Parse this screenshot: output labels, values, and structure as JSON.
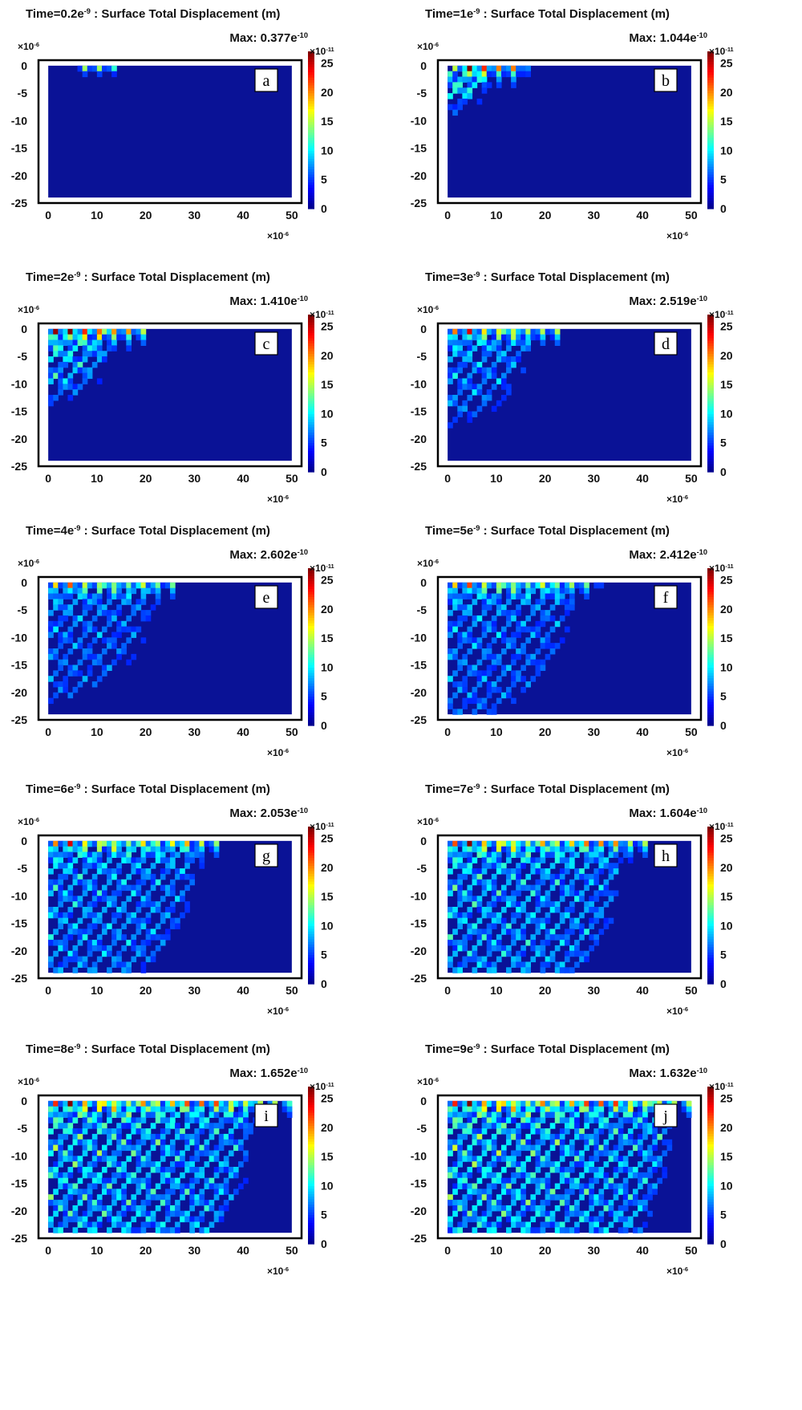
{
  "chart_data": [
    {
      "type": "heatmap",
      "panel_label": "a",
      "time_label": "Time=0.2e",
      "time_exp": "-9",
      "title_rest": " : Surface Total Displacement (m)",
      "max_label": "Max: 0.377e",
      "max_exp": "-10",
      "x_ticks": [
        "0",
        "10",
        "20",
        "30",
        "40",
        "50"
      ],
      "y_ticks": [
        "0",
        "-5",
        "-10",
        "-15",
        "-20",
        "-25"
      ],
      "x_mult": "×10",
      "x_mult_exp": "-6",
      "y_mult": "×10",
      "y_mult_exp": "-6",
      "colorbar_ticks": [
        "0",
        "5",
        "10",
        "15",
        "20",
        "25"
      ],
      "colorbar_mult": "×10",
      "colorbar_mult_exp": "-11",
      "xlim": [
        -2,
        52
      ],
      "ylim": [
        -25,
        1
      ],
      "clim": [
        0,
        27
      ],
      "wave": {
        "front": 3.5,
        "surface_amp": 1.0,
        "surface_reach": 14,
        "bulk_amp": 0,
        "surface_source_x": [
          6,
          14
        ]
      }
    },
    {
      "type": "heatmap",
      "panel_label": "b",
      "time_label": "Time=1e",
      "time_exp": "-9",
      "title_rest": " : Surface Total Displacement (m)",
      "max_label": "Max: 1.044e",
      "max_exp": "-10",
      "x_ticks": [
        "0",
        "10",
        "20",
        "30",
        "40",
        "50"
      ],
      "y_ticks": [
        "0",
        "-5",
        "-10",
        "-15",
        "-20",
        "-25"
      ],
      "x_mult": "×10",
      "x_mult_exp": "-6",
      "y_mult": "×10",
      "y_mult_exp": "-6",
      "colorbar_ticks": [
        "0",
        "5",
        "10",
        "15",
        "20",
        "25"
      ],
      "colorbar_mult": "×10",
      "colorbar_mult_exp": "-11",
      "xlim": [
        -2,
        52
      ],
      "ylim": [
        -25,
        1
      ],
      "clim": [
        0,
        27
      ],
      "wave": {
        "front": 8,
        "surface_amp": 1.0,
        "surface_reach": 17,
        "bulk_amp": 0.55,
        "surface_source_x": [
          2,
          16
        ]
      }
    },
    {
      "type": "heatmap",
      "panel_label": "c",
      "time_label": "Time=2e",
      "time_exp": "-9",
      "title_rest": " : Surface Total Displacement (m)",
      "max_label": "Max: 1.410e",
      "max_exp": "-10",
      "x_ticks": [
        "0",
        "10",
        "20",
        "30",
        "40",
        "50"
      ],
      "y_ticks": [
        "0",
        "-5",
        "-10",
        "-15",
        "-20",
        "-25"
      ],
      "x_mult": "×10",
      "x_mult_exp": "-6",
      "y_mult": "×10",
      "y_mult_exp": "-6",
      "colorbar_ticks": [
        "0",
        "5",
        "10",
        "15",
        "20",
        "25"
      ],
      "colorbar_mult": "×10",
      "colorbar_mult_exp": "-11",
      "xlim": [
        -2,
        52
      ],
      "ylim": [
        -25,
        1
      ],
      "clim": [
        0,
        27
      ],
      "wave": {
        "front": 13,
        "surface_amp": 0.95,
        "surface_reach": 20,
        "bulk_amp": 0.45,
        "surface_source_x": [
          0,
          20
        ]
      }
    },
    {
      "type": "heatmap",
      "panel_label": "d",
      "time_label": "Time=3e",
      "time_exp": "-9",
      "title_rest": " : Surface Total Displacement (m)",
      "max_label": "Max: 2.519e",
      "max_exp": "-10",
      "x_ticks": [
        "0",
        "10",
        "20",
        "30",
        "40",
        "50"
      ],
      "y_ticks": [
        "0",
        "-5",
        "-10",
        "-15",
        "-20",
        "-25"
      ],
      "x_mult": "×10",
      "x_mult_exp": "-6",
      "y_mult": "×10",
      "y_mult_exp": "-6",
      "colorbar_ticks": [
        "0",
        "5",
        "10",
        "15",
        "20",
        "25"
      ],
      "colorbar_mult": "×10",
      "colorbar_mult_exp": "-11",
      "xlim": [
        -2,
        52
      ],
      "ylim": [
        -25,
        1
      ],
      "clim": [
        0,
        27
      ],
      "wave": {
        "front": 17,
        "surface_amp": 0.7,
        "surface_reach": 24,
        "bulk_amp": 0.35,
        "surface_source_x": [
          0,
          24
        ]
      }
    },
    {
      "type": "heatmap",
      "panel_label": "e",
      "time_label": "Time=4e",
      "time_exp": "-9",
      "title_rest": " : Surface Total Displacement (m)",
      "max_label": "Max: 2.602e",
      "max_exp": "-10",
      "x_ticks": [
        "0",
        "10",
        "20",
        "30",
        "40",
        "50"
      ],
      "y_ticks": [
        "0",
        "-5",
        "-10",
        "-15",
        "-20",
        "-25"
      ],
      "x_mult": "×10",
      "x_mult_exp": "-6",
      "y_mult": "×10",
      "y_mult_exp": "-6",
      "colorbar_ticks": [
        "0",
        "5",
        "10",
        "15",
        "20",
        "25"
      ],
      "colorbar_mult": "×10",
      "colorbar_mult_exp": "-11",
      "xlim": [
        -2,
        52
      ],
      "ylim": [
        -25,
        1
      ],
      "clim": [
        0,
        27
      ],
      "wave": {
        "front": 22,
        "surface_amp": 0.6,
        "surface_reach": 27,
        "bulk_amp": 0.3,
        "surface_source_x": [
          0,
          27
        ]
      }
    },
    {
      "type": "heatmap",
      "panel_label": "f",
      "time_label": "Time=5e",
      "time_exp": "-9",
      "title_rest": " : Surface Total Displacement (m)",
      "max_label": "Max: 2.412e",
      "max_exp": "-10",
      "x_ticks": [
        "0",
        "10",
        "20",
        "30",
        "40",
        "50"
      ],
      "y_ticks": [
        "0",
        "-5",
        "-10",
        "-15",
        "-20",
        "-25"
      ],
      "x_mult": "×10",
      "x_mult_exp": "-6",
      "y_mult": "×10",
      "y_mult_exp": "-6",
      "colorbar_ticks": [
        "0",
        "5",
        "10",
        "15",
        "20",
        "25"
      ],
      "colorbar_mult": "×10",
      "colorbar_mult_exp": "-11",
      "xlim": [
        -2,
        52
      ],
      "ylim": [
        -25,
        1
      ],
      "clim": [
        0,
        27
      ],
      "wave": {
        "front": 26,
        "surface_amp": 0.6,
        "surface_reach": 31,
        "bulk_amp": 0.32,
        "surface_source_x": [
          0,
          31
        ]
      }
    },
    {
      "type": "heatmap",
      "panel_label": "g",
      "time_label": "Time=6e",
      "time_exp": "-9",
      "title_rest": " : Surface Total Displacement (m)",
      "max_label": "Max: 2.053e",
      "max_exp": "-10",
      "x_ticks": [
        "0",
        "10",
        "20",
        "30",
        "40",
        "50"
      ],
      "y_ticks": [
        "0",
        "-5",
        "-10",
        "-15",
        "-20",
        "-25"
      ],
      "x_mult": "×10",
      "x_mult_exp": "-6",
      "y_mult": "×10",
      "y_mult_exp": "-6",
      "colorbar_ticks": [
        "0",
        "5",
        "10",
        "15",
        "20",
        "25"
      ],
      "colorbar_mult": "×10",
      "colorbar_mult_exp": "-11",
      "xlim": [
        -2,
        52
      ],
      "ylim": [
        -25,
        1
      ],
      "clim": [
        0,
        27
      ],
      "wave": {
        "front": 31,
        "surface_amp": 0.65,
        "surface_reach": 36,
        "bulk_amp": 0.38,
        "surface_source_x": [
          0,
          36
        ]
      }
    },
    {
      "type": "heatmap",
      "panel_label": "h",
      "time_label": "Time=7e",
      "time_exp": "-9",
      "title_rest": " : Surface Total Displacement (m)",
      "max_label": "Max: 1.604e",
      "max_exp": "-10",
      "x_ticks": [
        "0",
        "10",
        "20",
        "30",
        "40",
        "50"
      ],
      "y_ticks": [
        "0",
        "-5",
        "-10",
        "-15",
        "-20",
        "-25"
      ],
      "x_mult": "×10",
      "x_mult_exp": "-6",
      "y_mult": "×10",
      "y_mult_exp": "-6",
      "colorbar_ticks": [
        "0",
        "5",
        "10",
        "15",
        "20",
        "25"
      ],
      "colorbar_mult": "×10",
      "colorbar_mult_exp": "-11",
      "xlim": [
        -2,
        52
      ],
      "ylim": [
        -25,
        1
      ],
      "clim": [
        0,
        27
      ],
      "wave": {
        "front": 36,
        "surface_amp": 0.7,
        "surface_reach": 42,
        "bulk_amp": 0.42,
        "surface_source_x": [
          0,
          42
        ]
      }
    },
    {
      "type": "heatmap",
      "panel_label": "i",
      "time_label": "Time=8e",
      "time_exp": "-9",
      "title_rest": " : Surface Total Displacement (m)",
      "max_label": "Max: 1.652e",
      "max_exp": "-10",
      "x_ticks": [
        "0",
        "10",
        "20",
        "30",
        "40",
        "50"
      ],
      "y_ticks": [
        "0",
        "-5",
        "-10",
        "-15",
        "-20",
        "-25"
      ],
      "x_mult": "×10",
      "x_mult_exp": "-6",
      "y_mult": "×10",
      "y_mult_exp": "-6",
      "colorbar_ticks": [
        "0",
        "5",
        "10",
        "15",
        "20",
        "25"
      ],
      "colorbar_mult": "×10",
      "colorbar_mult_exp": "-11",
      "xlim": [
        -2,
        52
      ],
      "ylim": [
        -25,
        1
      ],
      "clim": [
        0,
        27
      ],
      "wave": {
        "front": 42,
        "surface_amp": 0.7,
        "surface_reach": 50,
        "bulk_amp": 0.48,
        "surface_source_x": [
          0,
          50
        ]
      }
    },
    {
      "type": "heatmap",
      "panel_label": "j",
      "time_label": "Time=9e",
      "time_exp": "-9",
      "title_rest": " : Surface Total Displacement (m)",
      "max_label": "Max: 1.632e",
      "max_exp": "-10",
      "x_ticks": [
        "0",
        "10",
        "20",
        "30",
        "40",
        "50"
      ],
      "y_ticks": [
        "0",
        "-5",
        "-10",
        "-15",
        "-20",
        "-25"
      ],
      "x_mult": "×10",
      "x_mult_exp": "-6",
      "y_mult": "×10",
      "y_mult_exp": "-6",
      "colorbar_ticks": [
        "0",
        "5",
        "10",
        "15",
        "20",
        "25"
      ],
      "colorbar_mult": "×10",
      "colorbar_mult_exp": "-11",
      "xlim": [
        -2,
        52
      ],
      "ylim": [
        -25,
        1
      ],
      "clim": [
        0,
        27
      ],
      "wave": {
        "front": 46,
        "surface_amp": 0.7,
        "surface_reach": 52,
        "bulk_amp": 0.5,
        "surface_source_x": [
          0,
          52
        ]
      }
    }
  ],
  "colormap": [
    "#00008f",
    "#0000ff",
    "#0080ff",
    "#00ffff",
    "#80ff80",
    "#ffff00",
    "#ff8000",
    "#ff0000",
    "#800000"
  ],
  "colors": {
    "field_background": "#0a1296",
    "frame": "#000000",
    "panel_label_box": "#ffffff"
  }
}
